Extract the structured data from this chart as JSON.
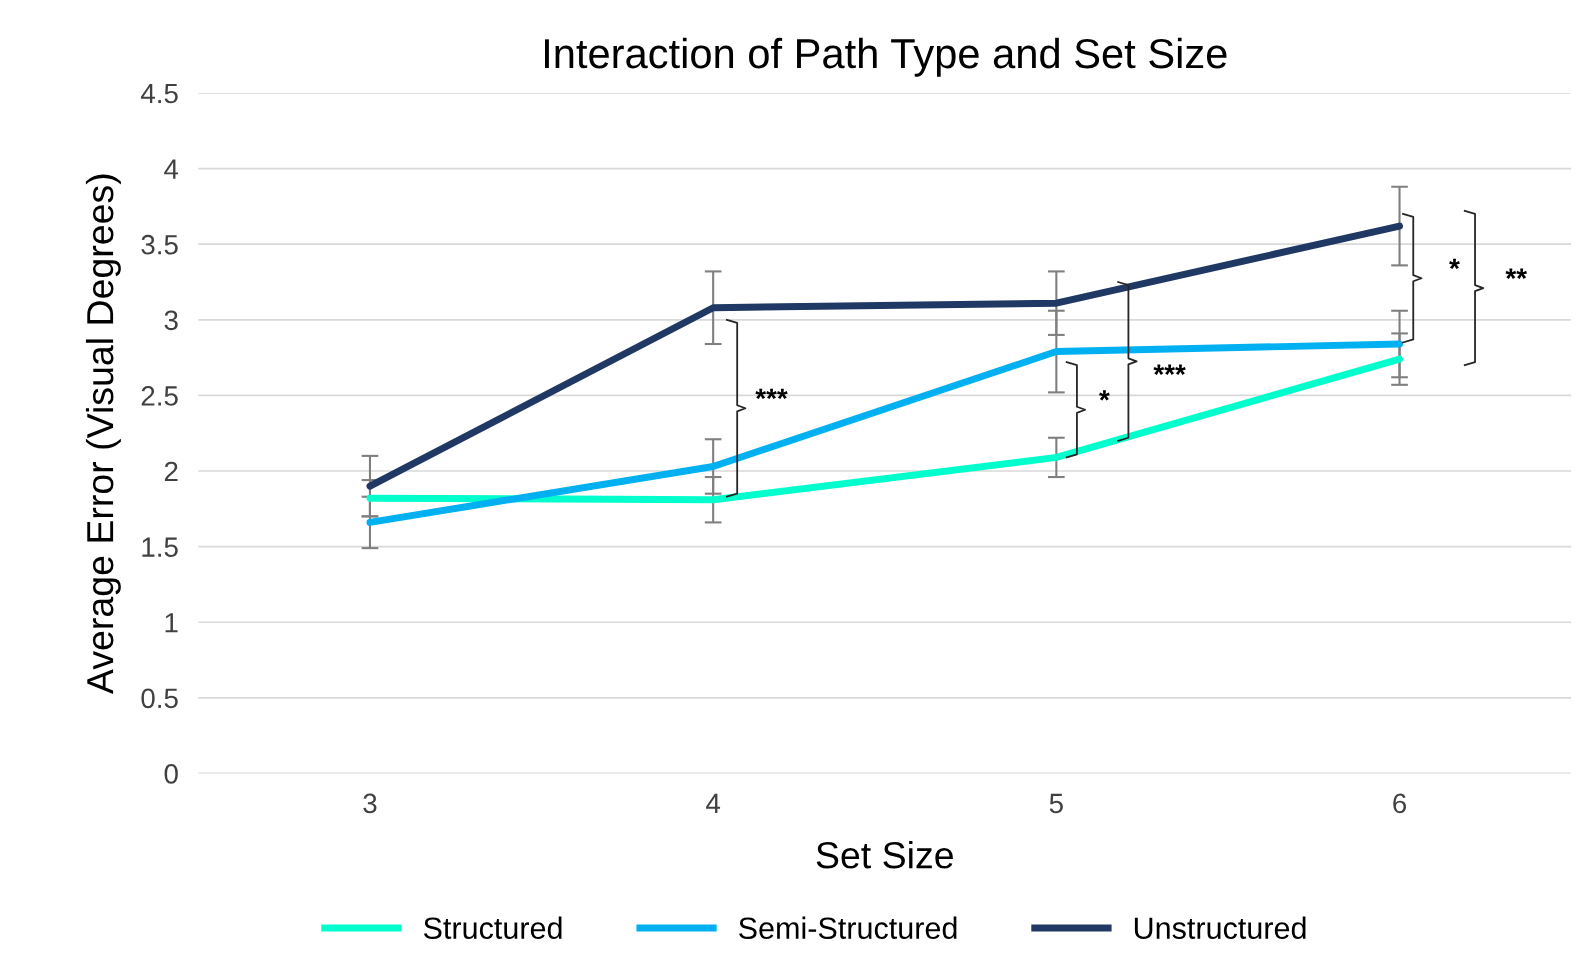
{
  "chart_data": {
    "type": "line",
    "title": "Interaction of Path Type and Set Size",
    "xlabel": "Set Size",
    "ylabel": "Average Error (Visual Degrees)",
    "categories": [
      "3",
      "4",
      "5",
      "6"
    ],
    "series": [
      {
        "name": "Structured",
        "color": "#00ffcc",
        "values": [
          1.82,
          1.81,
          2.09,
          2.74
        ],
        "errors": [
          0.12,
          0.15,
          0.13,
          0.17
        ]
      },
      {
        "name": "Semi-Structured",
        "color": "#00b0f0",
        "values": [
          1.66,
          2.03,
          2.79,
          2.84
        ],
        "errors": [
          0.17,
          0.18,
          0.27,
          0.22
        ]
      },
      {
        "name": "Unstructured",
        "color": "#1f3864",
        "values": [
          1.9,
          3.08,
          3.11,
          3.62
        ],
        "errors": [
          0.2,
          0.24,
          0.21,
          0.26
        ]
      }
    ],
    "ylim": [
      0,
      4.5
    ],
    "yticks": [
      0,
      0.5,
      1,
      1.5,
      2,
      2.5,
      3,
      3.5,
      4,
      4.5
    ],
    "grid": "y",
    "legend": "bottom",
    "marker": "none",
    "line_style": "solid",
    "annotations": [
      "***",
      "*",
      "***",
      "*",
      "**"
    ]
  }
}
